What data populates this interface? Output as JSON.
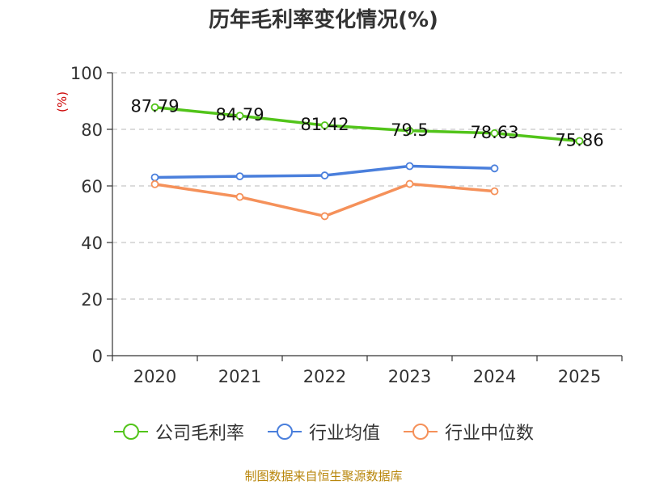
{
  "chart_data": {
    "type": "line",
    "title": "历年毛利率变化情况(%)",
    "ylabel": "(%)",
    "xlabel": "",
    "categories": [
      "2020",
      "2021",
      "2022",
      "2023",
      "2024",
      "2025"
    ],
    "ylim": [
      0,
      100
    ],
    "yticks": [
      0,
      20,
      40,
      60,
      80,
      100
    ],
    "grid": true,
    "legend_position": "bottom",
    "series": [
      {
        "name": "公司毛利率",
        "color": "#52c41a",
        "values": [
          87.79,
          84.79,
          81.42,
          79.5,
          78.63,
          75.86
        ],
        "labels": [
          "87.79",
          "84.79",
          "81.42",
          "79.5",
          "78.63",
          "75.86"
        ]
      },
      {
        "name": "行业均值",
        "color": "#4a7fdc",
        "values": [
          63.0,
          63.4,
          63.7,
          67.0,
          66.2,
          null
        ]
      },
      {
        "name": "行业中位数",
        "color": "#f5915a",
        "values": [
          60.6,
          56.1,
          49.3,
          60.7,
          58.1,
          null
        ]
      }
    ]
  },
  "source": "制图数据来自恒生聚源数据库"
}
